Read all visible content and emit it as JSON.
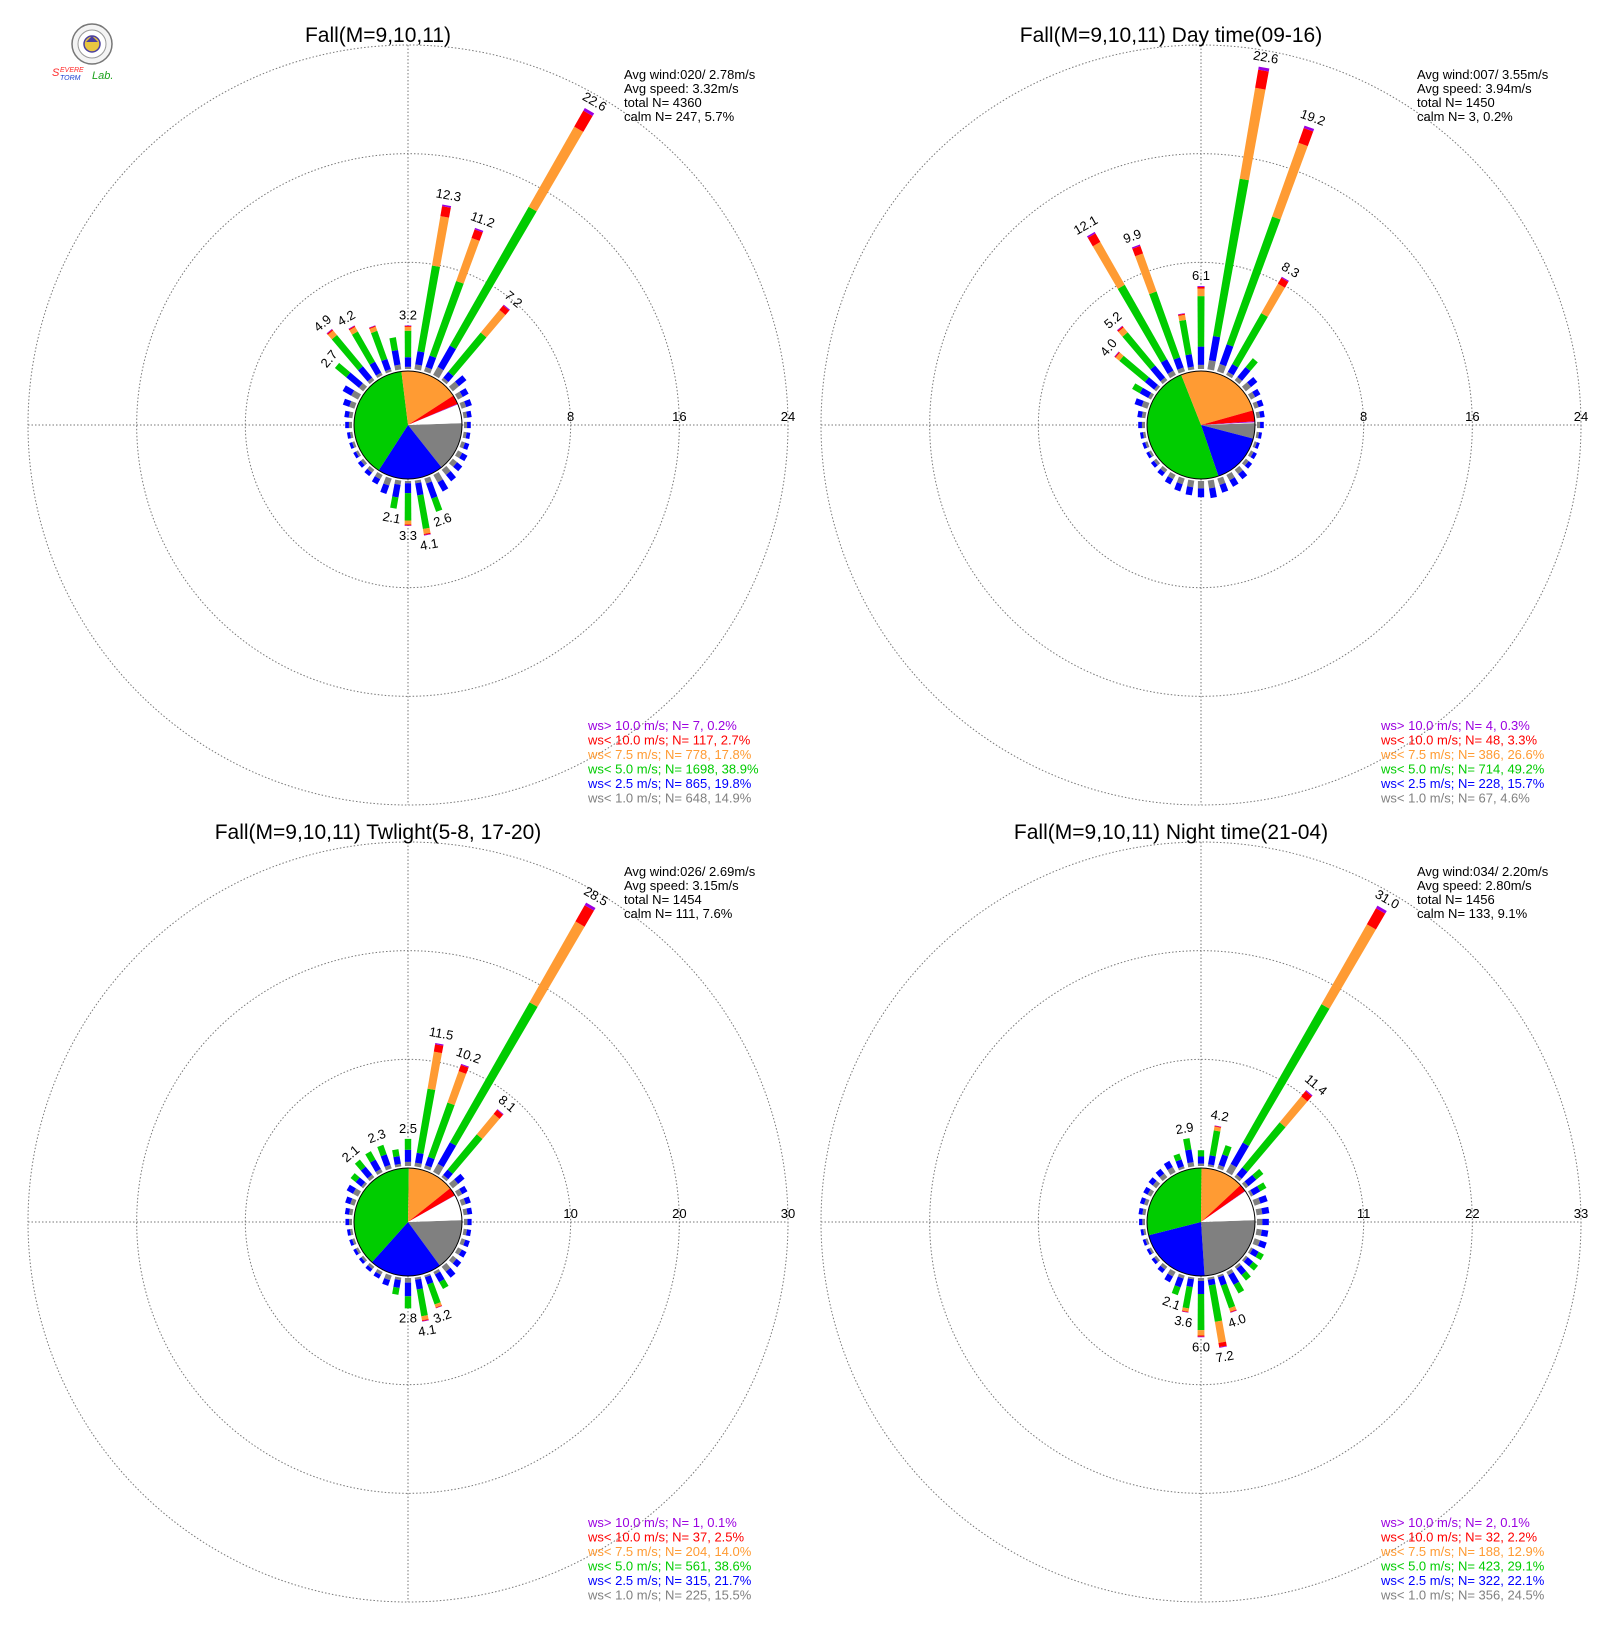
{
  "logo": {
    "text_top": "Severe",
    "text_bottom": "Storm",
    "text_lab": "Lab."
  },
  "colors": {
    "gt10": "#9b00e0",
    "lt10": "#ff0000",
    "lt75": "#ff9b33",
    "lt5": "#00cc00",
    "lt25": "#0000ff",
    "lt1": "#808080",
    "ring": "#777777"
  },
  "chart_data": [
    {
      "type": "wind-rose",
      "title": "Fall(M=9,10,11)",
      "rings": [
        "8",
        "16",
        "24"
      ],
      "r_max": 24,
      "stats": [
        "Avg wind:020/ 2.78m/s",
        "Avg speed: 3.32m/s",
        "total N=       4360",
        "calm N=     247,   5.7%"
      ],
      "legend": [
        {
          "label": "ws> 10.0 m/s; N=      7,  0.2%",
          "color": "gt10"
        },
        {
          "label": "ws< 10.0 m/s; N=    117,  2.7%",
          "color": "lt10"
        },
        {
          "label": "ws<  7.5 m/s; N=    778, 17.8%",
          "color": "lt75"
        },
        {
          "label": "ws<  5.0 m/s; N=  1698, 38.9%",
          "color": "lt5"
        },
        {
          "label": "ws<  2.5 m/s; N=    865, 19.8%",
          "color": "lt25"
        },
        {
          "label": "ws<  1.0 m/s; N=    648, 14.9%",
          "color": "lt1"
        }
      ],
      "pie": [
        {
          "cls": "lt1",
          "pct": 14.9
        },
        {
          "cls": "lt25",
          "pct": 19.8
        },
        {
          "cls": "lt5",
          "pct": 38.9
        },
        {
          "cls": "lt75",
          "pct": 17.8
        },
        {
          "cls": "lt10",
          "pct": 2.7
        },
        {
          "cls": "gt10",
          "pct": 0.2
        },
        {
          "cls": "calm",
          "pct": 5.7
        }
      ],
      "directions": [
        {
          "deg": 0,
          "total": 3.2,
          "label": "3.2"
        },
        {
          "deg": 10,
          "total": 12.3,
          "label": "12.3"
        },
        {
          "deg": 20,
          "total": 11.2,
          "label": "11.2"
        },
        {
          "deg": 30,
          "total": 22.6,
          "label": "22.6"
        },
        {
          "deg": 40,
          "total": 7.2,
          "label": "7.2"
        },
        {
          "deg": 50,
          "total": 1.3
        },
        {
          "deg": 60,
          "total": 0.9
        },
        {
          "deg": 70,
          "total": 0.8
        },
        {
          "deg": 80,
          "total": 0.6
        },
        {
          "deg": 90,
          "total": 0.5
        },
        {
          "deg": 100,
          "total": 0.5
        },
        {
          "deg": 110,
          "total": 0.6
        },
        {
          "deg": 120,
          "total": 0.8
        },
        {
          "deg": 130,
          "total": 0.9
        },
        {
          "deg": 140,
          "total": 1.1
        },
        {
          "deg": 150,
          "total": 1.4
        },
        {
          "deg": 160,
          "total": 2.6,
          "label": "2.6"
        },
        {
          "deg": 170,
          "total": 4.1,
          "label": "4.1"
        },
        {
          "deg": 180,
          "total": 3.3,
          "label": "3.3"
        },
        {
          "deg": 190,
          "total": 2.1,
          "label": "2.1"
        },
        {
          "deg": 200,
          "total": 1.2
        },
        {
          "deg": 210,
          "total": 0.8
        },
        {
          "deg": 220,
          "total": 0.6
        },
        {
          "deg": 230,
          "total": 0.5
        },
        {
          "deg": 240,
          "total": 0.4
        },
        {
          "deg": 250,
          "total": 0.4
        },
        {
          "deg": 260,
          "total": 0.4
        },
        {
          "deg": 270,
          "total": 0.5
        },
        {
          "deg": 280,
          "total": 0.6
        },
        {
          "deg": 290,
          "total": 0.9
        },
        {
          "deg": 300,
          "total": 1.3
        },
        {
          "deg": 310,
          "total": 2.7,
          "label": "2.7"
        },
        {
          "deg": 320,
          "total": 4.9,
          "label": "4.9"
        },
        {
          "deg": 330,
          "total": 4.2,
          "label": "4.2"
        },
        {
          "deg": 340,
          "total": 3.6
        },
        {
          "deg": 350,
          "total": 2.4
        }
      ]
    },
    {
      "type": "wind-rose",
      "title": "Fall(M=9,10,11) Day time(09-16)",
      "rings": [
        "8",
        "16",
        "24"
      ],
      "r_max": 24,
      "stats": [
        "Avg wind:007/ 3.55m/s",
        "Avg speed: 3.94m/s",
        "total N=       1450",
        "calm N=        3,   0.2%"
      ],
      "legend": [
        {
          "label": "ws> 10.0 m/s; N=      4,  0.3%",
          "color": "gt10"
        },
        {
          "label": "ws< 10.0 m/s; N=     48,  3.3%",
          "color": "lt10"
        },
        {
          "label": "ws<  7.5 m/s; N=    386, 26.6%",
          "color": "lt75"
        },
        {
          "label": "ws<  5.0 m/s; N=    714, 49.2%",
          "color": "lt5"
        },
        {
          "label": "ws<  2.5 m/s; N=    228, 15.7%",
          "color": "lt25"
        },
        {
          "label": "ws<  1.0 m/s; N=     67,  4.6%",
          "color": "lt1"
        }
      ],
      "pie": [
        {
          "cls": "lt1",
          "pct": 4.6
        },
        {
          "cls": "lt25",
          "pct": 15.7
        },
        {
          "cls": "lt5",
          "pct": 49.2
        },
        {
          "cls": "lt75",
          "pct": 26.6
        },
        {
          "cls": "lt10",
          "pct": 3.3
        },
        {
          "cls": "gt10",
          "pct": 0.3
        },
        {
          "cls": "calm",
          "pct": 0.2
        }
      ],
      "directions": [
        {
          "deg": 0,
          "total": 6.1,
          "label": "6.1"
        },
        {
          "deg": 10,
          "total": 22.6,
          "label": "22.6"
        },
        {
          "deg": 20,
          "total": 19.2,
          "label": "19.2"
        },
        {
          "deg": 30,
          "total": 8.3,
          "label": "8.3"
        },
        {
          "deg": 40,
          "total": 2.1
        },
        {
          "deg": 50,
          "total": 1.1
        },
        {
          "deg": 60,
          "total": 0.8
        },
        {
          "deg": 70,
          "total": 0.7
        },
        {
          "deg": 80,
          "total": 0.6
        },
        {
          "deg": 90,
          "total": 0.5
        },
        {
          "deg": 100,
          "total": 0.4
        },
        {
          "deg": 110,
          "total": 0.4
        },
        {
          "deg": 120,
          "total": 0.5
        },
        {
          "deg": 130,
          "total": 0.6
        },
        {
          "deg": 140,
          "total": 0.9
        },
        {
          "deg": 150,
          "total": 1.0
        },
        {
          "deg": 160,
          "total": 1.1
        },
        {
          "deg": 170,
          "total": 1.3
        },
        {
          "deg": 180,
          "total": 1.2
        },
        {
          "deg": 190,
          "total": 1.1
        },
        {
          "deg": 200,
          "total": 1.0
        },
        {
          "deg": 210,
          "total": 0.8
        },
        {
          "deg": 220,
          "total": 0.6
        },
        {
          "deg": 230,
          "total": 0.5
        },
        {
          "deg": 240,
          "total": 0.4
        },
        {
          "deg": 250,
          "total": 0.4
        },
        {
          "deg": 260,
          "total": 0.4
        },
        {
          "deg": 270,
          "total": 0.5
        },
        {
          "deg": 280,
          "total": 0.6
        },
        {
          "deg": 290,
          "total": 1.0
        },
        {
          "deg": 300,
          "total": 1.6
        },
        {
          "deg": 310,
          "total": 4.0,
          "label": "4.0"
        },
        {
          "deg": 320,
          "total": 5.2,
          "label": "5.2"
        },
        {
          "deg": 330,
          "total": 12.1,
          "label": "12.1"
        },
        {
          "deg": 340,
          "total": 9.9,
          "label": "9.9"
        },
        {
          "deg": 350,
          "total": 4.2
        }
      ]
    },
    {
      "type": "wind-rose",
      "title": "Fall(M=9,10,11) Twlight(5-8, 17-20)",
      "rings": [
        "10",
        "20",
        "30"
      ],
      "r_max": 30,
      "stats": [
        "Avg wind:026/ 2.69m/s",
        "Avg speed: 3.15m/s",
        "total N=       1454",
        "calm N=     111,   7.6%"
      ],
      "legend": [
        {
          "label": "ws> 10.0 m/s; N=      1,  0.1%",
          "color": "gt10"
        },
        {
          "label": "ws< 10.0 m/s; N=     37,  2.5%",
          "color": "lt10"
        },
        {
          "label": "ws<  7.5 m/s; N=    204, 14.0%",
          "color": "lt75"
        },
        {
          "label": "ws<  5.0 m/s; N=    561, 38.6%",
          "color": "lt5"
        },
        {
          "label": "ws<  2.5 m/s; N=    315, 21.7%",
          "color": "lt25"
        },
        {
          "label": "ws<  1.0 m/s; N=    225, 15.5%",
          "color": "lt1"
        }
      ],
      "pie": [
        {
          "cls": "lt1",
          "pct": 15.5
        },
        {
          "cls": "lt25",
          "pct": 21.7
        },
        {
          "cls": "lt5",
          "pct": 38.6
        },
        {
          "cls": "lt75",
          "pct": 14.0
        },
        {
          "cls": "lt10",
          "pct": 2.5
        },
        {
          "cls": "gt10",
          "pct": 0.1
        },
        {
          "cls": "calm",
          "pct": 7.6
        }
      ],
      "directions": [
        {
          "deg": 0,
          "total": 2.5,
          "label": "2.5"
        },
        {
          "deg": 10,
          "total": 11.5,
          "label": "11.5"
        },
        {
          "deg": 20,
          "total": 10.2,
          "label": "10.2"
        },
        {
          "deg": 30,
          "total": 28.5,
          "label": "28.5"
        },
        {
          "deg": 40,
          "total": 8.1,
          "label": "8.1"
        },
        {
          "deg": 50,
          "total": 1.4
        },
        {
          "deg": 60,
          "total": 1.0
        },
        {
          "deg": 70,
          "total": 0.9
        },
        {
          "deg": 80,
          "total": 0.8
        },
        {
          "deg": 90,
          "total": 0.7
        },
        {
          "deg": 100,
          "total": 0.7
        },
        {
          "deg": 110,
          "total": 0.8
        },
        {
          "deg": 120,
          "total": 0.9
        },
        {
          "deg": 130,
          "total": 1.0
        },
        {
          "deg": 140,
          "total": 1.3
        },
        {
          "deg": 150,
          "total": 1.8
        },
        {
          "deg": 160,
          "total": 3.2,
          "label": "3.2"
        },
        {
          "deg": 170,
          "total": 4.1,
          "label": "4.1"
        },
        {
          "deg": 180,
          "total": 2.8,
          "label": "2.8"
        },
        {
          "deg": 190,
          "total": 1.6
        },
        {
          "deg": 200,
          "total": 1.0
        },
        {
          "deg": 210,
          "total": 0.7
        },
        {
          "deg": 220,
          "total": 0.6
        },
        {
          "deg": 230,
          "total": 0.5
        },
        {
          "deg": 240,
          "total": 0.5
        },
        {
          "deg": 250,
          "total": 0.5
        },
        {
          "deg": 260,
          "total": 0.5
        },
        {
          "deg": 270,
          "total": 0.6
        },
        {
          "deg": 280,
          "total": 0.7
        },
        {
          "deg": 290,
          "total": 0.9
        },
        {
          "deg": 300,
          "total": 1.2
        },
        {
          "deg": 310,
          "total": 1.5
        },
        {
          "deg": 320,
          "total": 2.1,
          "label": "2.1"
        },
        {
          "deg": 330,
          "total": 2.2
        },
        {
          "deg": 340,
          "total": 2.3,
          "label": "2.3"
        },
        {
          "deg": 350,
          "total": 1.6
        }
      ]
    },
    {
      "type": "wind-rose",
      "title": "Fall(M=9,10,11) Night time(21-04)",
      "rings": [
        "11",
        "22",
        "33"
      ],
      "r_max": 33,
      "stats": [
        "Avg wind:034/ 2.20m/s",
        "Avg speed: 2.80m/s",
        "total N=       1456",
        "calm N=     133,   9.1%"
      ],
      "legend": [
        {
          "label": "ws> 10.0 m/s; N=      2,  0.1%",
          "color": "gt10"
        },
        {
          "label": "ws< 10.0 m/s; N=     32,  2.2%",
          "color": "lt10"
        },
        {
          "label": "ws<  7.5 m/s; N=    188, 12.9%",
          "color": "lt75"
        },
        {
          "label": "ws<  5.0 m/s; N=    423, 29.1%",
          "color": "lt5"
        },
        {
          "label": "ws<  2.5 m/s; N=    322, 22.1%",
          "color": "lt25"
        },
        {
          "label": "ws<  1.0 m/s; N=    356, 24.5%",
          "color": "lt1"
        }
      ],
      "pie": [
        {
          "cls": "lt1",
          "pct": 24.5
        },
        {
          "cls": "lt25",
          "pct": 22.1
        },
        {
          "cls": "lt5",
          "pct": 29.1
        },
        {
          "cls": "lt75",
          "pct": 12.9
        },
        {
          "cls": "lt10",
          "pct": 2.2
        },
        {
          "cls": "gt10",
          "pct": 0.1
        },
        {
          "cls": "calm",
          "pct": 9.1
        }
      ],
      "directions": [
        {
          "deg": 0,
          "total": 1.6
        },
        {
          "deg": 10,
          "total": 4.2,
          "label": "4.2"
        },
        {
          "deg": 20,
          "total": 2.5
        },
        {
          "deg": 30,
          "total": 31.0,
          "label": "31.0"
        },
        {
          "deg": 40,
          "total": 11.4,
          "label": "11.4"
        },
        {
          "deg": 50,
          "total": 2.3
        },
        {
          "deg": 60,
          "total": 1.8
        },
        {
          "deg": 70,
          "total": 1.4
        },
        {
          "deg": 80,
          "total": 1.3
        },
        {
          "deg": 90,
          "total": 1.2
        },
        {
          "deg": 100,
          "total": 1.2
        },
        {
          "deg": 110,
          "total": 1.3
        },
        {
          "deg": 120,
          "total": 1.5
        },
        {
          "deg": 130,
          "total": 1.6
        },
        {
          "deg": 140,
          "total": 1.8
        },
        {
          "deg": 150,
          "total": 2.5
        },
        {
          "deg": 160,
          "total": 4.0,
          "label": "4.0"
        },
        {
          "deg": 170,
          "total": 7.2,
          "label": "7.2"
        },
        {
          "deg": 180,
          "total": 6.0,
          "label": "6.0"
        },
        {
          "deg": 190,
          "total": 3.6,
          "label": "3.6"
        },
        {
          "deg": 200,
          "total": 2.1,
          "label": "2.1"
        },
        {
          "deg": 210,
          "total": 1.2
        },
        {
          "deg": 220,
          "total": 0.8
        },
        {
          "deg": 230,
          "total": 0.6
        },
        {
          "deg": 240,
          "total": 0.5
        },
        {
          "deg": 250,
          "total": 0.5
        },
        {
          "deg": 260,
          "total": 0.5
        },
        {
          "deg": 270,
          "total": 0.6
        },
        {
          "deg": 280,
          "total": 0.7
        },
        {
          "deg": 290,
          "total": 0.8
        },
        {
          "deg": 300,
          "total": 0.9
        },
        {
          "deg": 310,
          "total": 1.0
        },
        {
          "deg": 320,
          "total": 1.1
        },
        {
          "deg": 330,
          "total": 1.3
        },
        {
          "deg": 340,
          "total": 1.6
        },
        {
          "deg": 350,
          "total": 2.9,
          "label": "2.9"
        }
      ]
    }
  ]
}
